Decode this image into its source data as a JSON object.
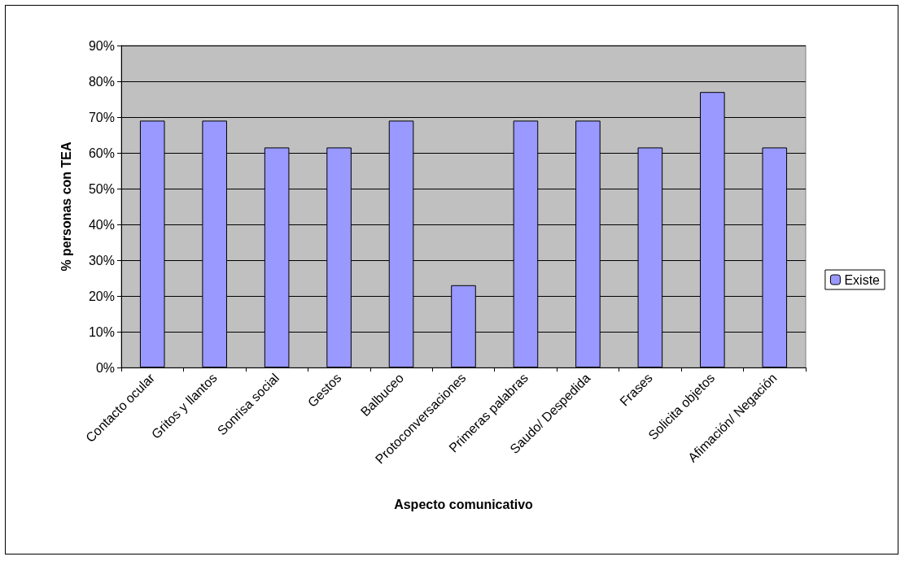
{
  "chart_data": {
    "type": "bar",
    "xlabel": "Aspecto comunicativo",
    "ylabel": "% personas con TEA",
    "categories": [
      "Contacto ocular",
      "Gritos y llantos",
      "Sonrisa social",
      "Gestos",
      "Balbuceo",
      "Protoconversaciones",
      "Primeras palabras",
      "Saudo/ Despedida",
      "Frases",
      "Solicita objetos",
      "Afimación/ Negación"
    ],
    "series": [
      {
        "name": "Existe",
        "color": "#9999ff",
        "values": [
          69,
          69,
          61.5,
          61.5,
          69,
          23,
          69,
          69,
          61.5,
          77,
          61.5
        ]
      }
    ],
    "ylim": [
      0,
      90
    ],
    "yticks": [
      {
        "value": 0,
        "label": "0%"
      },
      {
        "value": 10,
        "label": "10%"
      },
      {
        "value": 20,
        "label": "20%"
      },
      {
        "value": 30,
        "label": "30%"
      },
      {
        "value": 40,
        "label": "40%"
      },
      {
        "value": 50,
        "label": "50%"
      },
      {
        "value": 60,
        "label": "60%"
      },
      {
        "value": 70,
        "label": "70%"
      },
      {
        "value": 80,
        "label": "80%"
      },
      {
        "value": 90,
        "label": "90%"
      }
    ],
    "grid": "y",
    "legend": "right"
  }
}
